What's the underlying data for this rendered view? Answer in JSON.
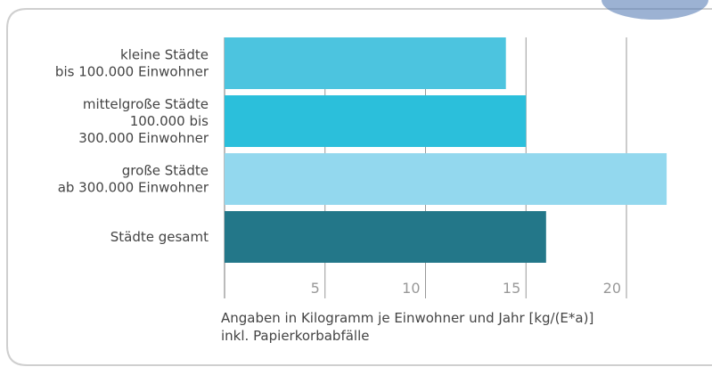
{
  "chart_data": {
    "type": "bar",
    "orientation": "horizontal",
    "categories": [
      [
        "kleine Städte",
        "bis 100.000 Einwohner"
      ],
      [
        "mittelgroße Städte",
        "100.000 bis",
        "300.000 Einwohner"
      ],
      [
        "große Städte",
        "ab 300.000 Einwohner"
      ],
      [
        "Städte gesamt"
      ]
    ],
    "values": [
      14,
      15,
      22,
      16
    ],
    "colors": [
      "#4cc4df",
      "#2bbfdb",
      "#93d8ee",
      "#237789"
    ],
    "xlim": [
      0,
      23
    ],
    "xticks": [
      5,
      10,
      15,
      20
    ],
    "grid": true,
    "notes": [
      "Angaben in Kilogramm je Einwohner und Jahr [kg/(E*a)]",
      "inkl. Papierkorbabfälle"
    ]
  }
}
